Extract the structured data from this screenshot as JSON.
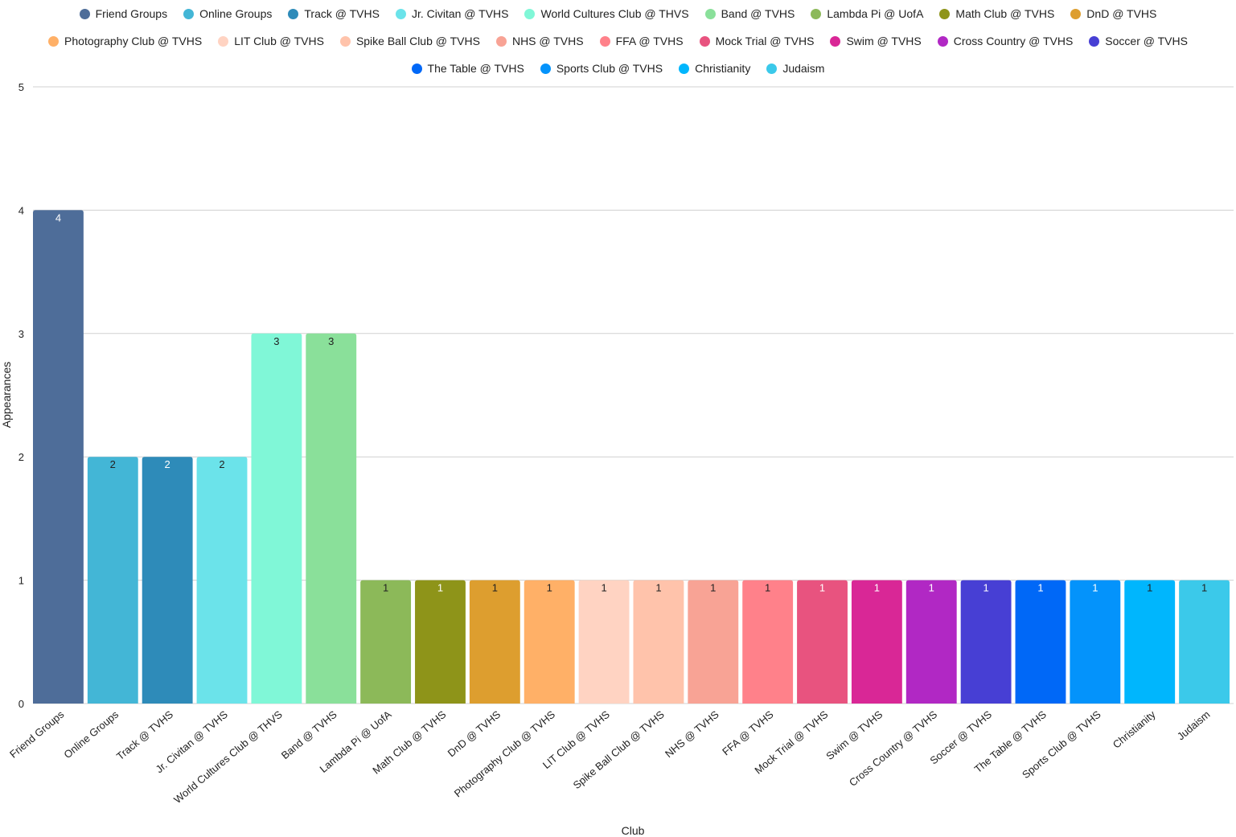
{
  "chart_data": {
    "type": "bar",
    "categories": [
      "Friend Groups",
      "Online Groups",
      "Track @ TVHS",
      "Jr. Civitan @ TVHS",
      "World Cultures Club @ THVS",
      "Band @ TVHS",
      "Lambda Pi @ UofA",
      "Math Club @ TVHS",
      "DnD @ TVHS",
      "Photography Club @ TVHS",
      "LIT Club @ TVHS",
      "Spike Ball Club @ TVHS",
      "NHS @ TVHS",
      "FFA @ TVHS",
      "Mock Trial @ TVHS",
      "Swim @ TVHS",
      "Cross Country @ TVHS",
      "Soccer @ TVHS",
      "The Table @ TVHS",
      "Sports Club @ TVHS",
      "Christianity",
      "Judaism"
    ],
    "values": [
      4,
      2,
      2,
      2,
      3,
      3,
      1,
      1,
      1,
      1,
      1,
      1,
      1,
      1,
      1,
      1,
      1,
      1,
      1,
      1,
      1,
      1
    ],
    "colors": [
      "#4e6d99",
      "#43b6d6",
      "#2e8bb9",
      "#6be3ea",
      "#80f7d7",
      "#8ae09a",
      "#8cb959",
      "#8e9419",
      "#dd9e2f",
      "#ffb067",
      "#ffd3c2",
      "#ffc3ab",
      "#f8a395",
      "#ff818a",
      "#e8537f",
      "#d92796",
      "#b128c4",
      "#473fd4",
      "#0068f7",
      "#0493fb",
      "#00b6fd",
      "#3bc9ea"
    ],
    "label_colors": [
      "#ffffff",
      "#222222",
      "#ffffff",
      "#222222",
      "#222222",
      "#222222",
      "#222222",
      "#ffffff",
      "#222222",
      "#222222",
      "#222222",
      "#222222",
      "#222222",
      "#222222",
      "#ffffff",
      "#ffffff",
      "#ffffff",
      "#ffffff",
      "#ffffff",
      "#ffffff",
      "#222222",
      "#222222"
    ],
    "legend_rows": [
      9,
      9,
      4
    ],
    "xlabel": "Club",
    "ylabel": "Appearances",
    "ylim": [
      0,
      5
    ],
    "yticks": [
      0,
      1,
      2,
      3,
      4,
      5
    ],
    "grid": true,
    "legend_position": "top"
  }
}
